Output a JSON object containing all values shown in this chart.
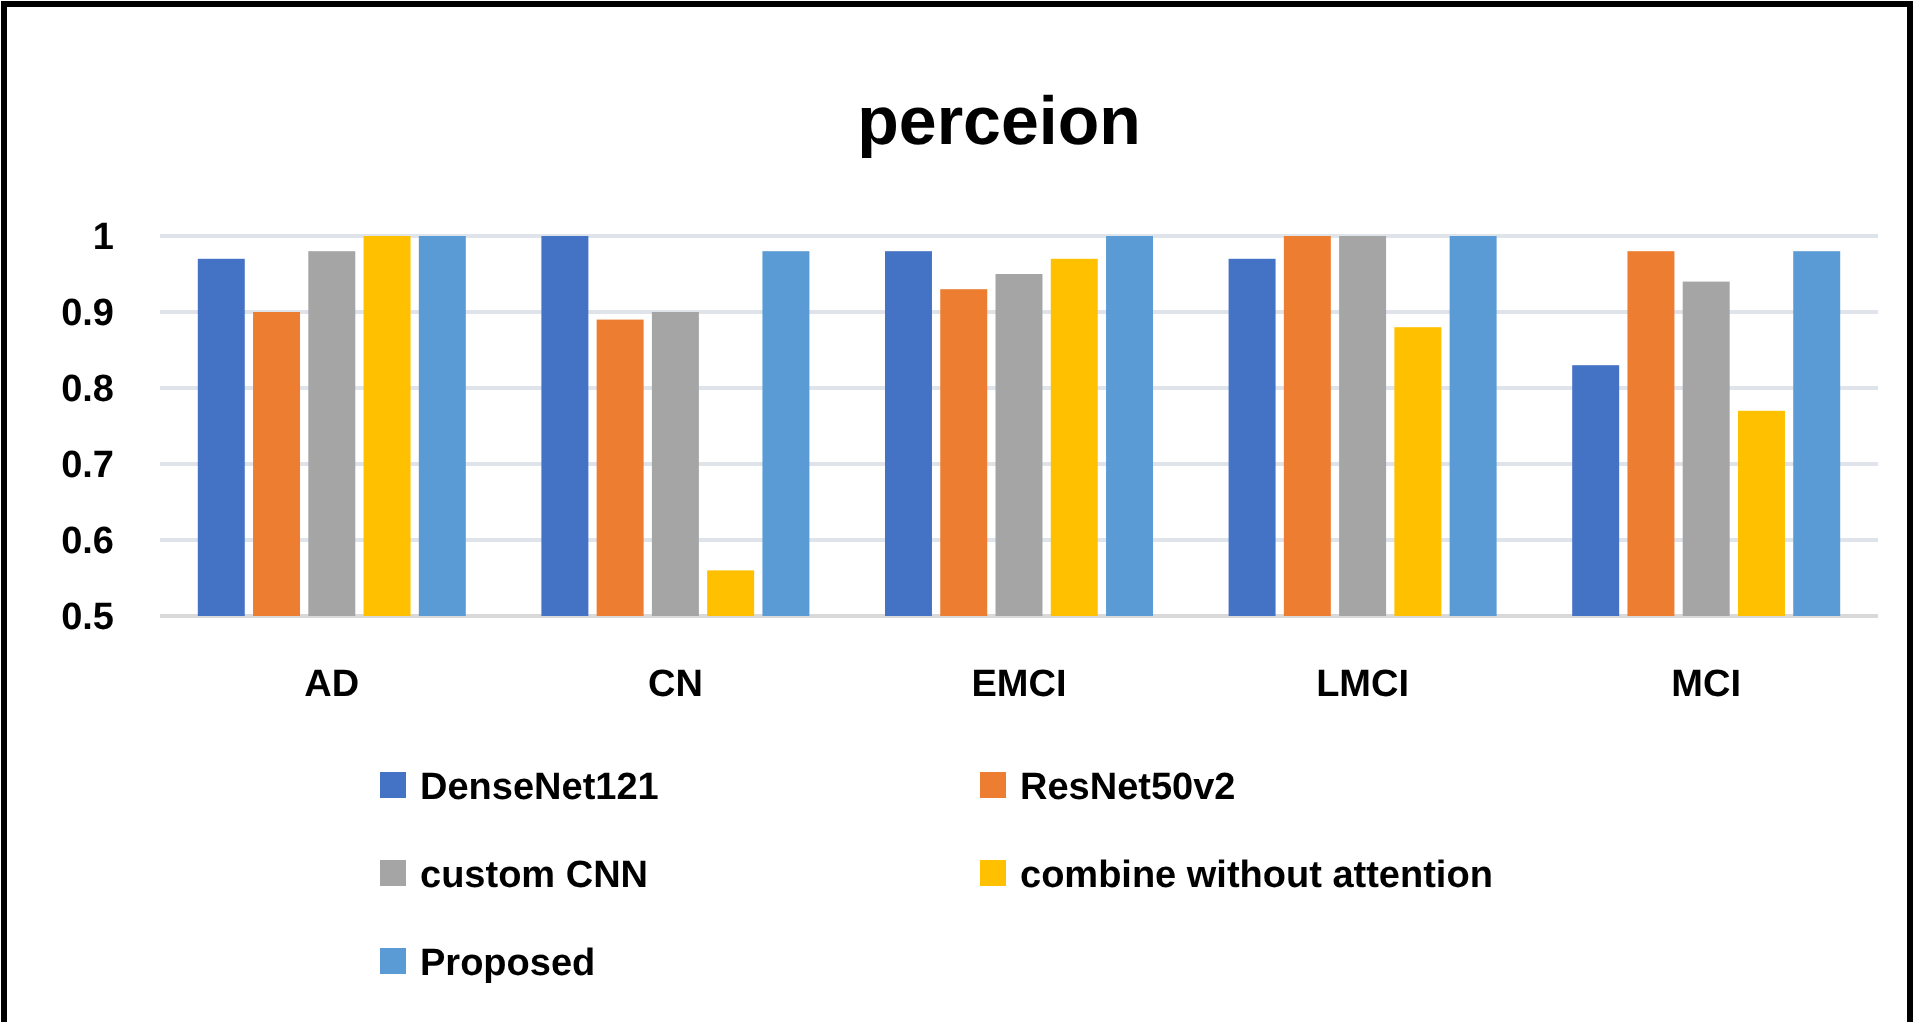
{
  "chart_data": {
    "type": "bar",
    "title": "perceion",
    "categories": [
      "AD",
      "CN",
      "EMCI",
      "LMCI",
      "MCI"
    ],
    "series": [
      {
        "name": "DenseNet121",
        "color": "#4472c4",
        "values": [
          0.97,
          1.0,
          0.98,
          0.97,
          0.83
        ]
      },
      {
        "name": "ResNet50v2",
        "color": "#ed7d31",
        "values": [
          0.9,
          0.89,
          0.93,
          1.0,
          0.98
        ]
      },
      {
        "name": "custom CNN",
        "color": "#a5a5a5",
        "values": [
          0.98,
          0.9,
          0.95,
          1.0,
          0.94
        ]
      },
      {
        "name": "combine without  attention",
        "color": "#ffc000",
        "values": [
          1.0,
          0.56,
          0.97,
          0.88,
          0.77
        ]
      },
      {
        "name": "Proposed",
        "color": "#5b9bd5",
        "values": [
          1.0,
          0.98,
          1.0,
          1.0,
          0.98
        ]
      }
    ],
    "ylim": [
      0.5,
      1.0
    ],
    "yticks": [
      0.5,
      0.6,
      0.7,
      0.8,
      0.9,
      1
    ],
    "grid": "y",
    "legend": "bottom"
  }
}
